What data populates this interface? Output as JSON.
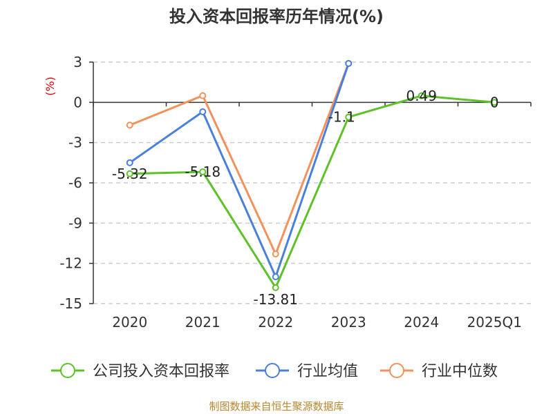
{
  "colors": {
    "company": "#5cc228",
    "industry_avg": "#4a7fdc",
    "industry_median": "#f4915a",
    "grid": "#cccccc",
    "axis": "#333333",
    "ylabel": "#dd0000",
    "source": "#b8862d"
  },
  "source_text": "制图数据来自恒生聚源数据库",
  "chart_data": {
    "type": "line",
    "title": "投入资本回报率历年情况(%)",
    "ylabel": "(%)",
    "xlabel": "",
    "categories": [
      "2020",
      "2021",
      "2022",
      "2023",
      "2024",
      "2025Q1"
    ],
    "ylim": [
      -15,
      3
    ],
    "yticks": [
      3,
      0,
      -3,
      -6,
      -9,
      -12,
      -15
    ],
    "grid": true,
    "legend_position": "bottom",
    "series": [
      {
        "name": "公司投入资本回报率",
        "color": "#5cc228",
        "values": [
          -5.32,
          -5.18,
          -13.81,
          -1.1,
          0.49,
          0
        ],
        "labels": [
          "-5.32",
          "-5.18",
          "-13.81",
          "-1.1",
          "0.49",
          "0"
        ]
      },
      {
        "name": "行业均值",
        "color": "#4a7fdc",
        "values": [
          -4.5,
          -0.7,
          -13.0,
          2.9,
          null,
          null
        ]
      },
      {
        "name": "行业中位数",
        "color": "#f4915a",
        "values": [
          -1.7,
          0.5,
          -11.3,
          2.9,
          null,
          null
        ]
      }
    ]
  }
}
